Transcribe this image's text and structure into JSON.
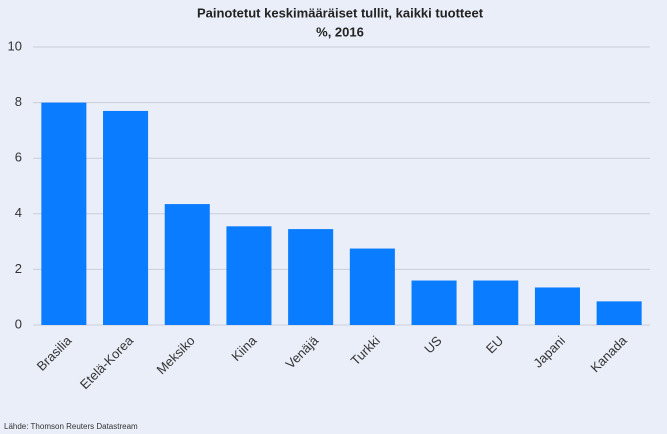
{
  "chart_data": {
    "type": "bar",
    "title": "Painotetut keskimääräiset tullit, kaikki tuotteet",
    "subtitle": "%, 2016",
    "source": "Lähde: Thomson Reuters Datastream",
    "categories": [
      "Brasilia",
      "Etelä-Korea",
      "Meksiko",
      "Kiina",
      "Venäjä",
      "Turkki",
      "US",
      "EU",
      "Japani",
      "Kanada"
    ],
    "values": [
      8.0,
      7.7,
      4.35,
      3.55,
      3.45,
      2.75,
      1.6,
      1.6,
      1.35,
      0.85
    ],
    "color": "#0a7cff",
    "ylim": [
      0,
      10
    ],
    "yticks": [
      0,
      2,
      4,
      6,
      8,
      10
    ],
    "grid": true
  }
}
